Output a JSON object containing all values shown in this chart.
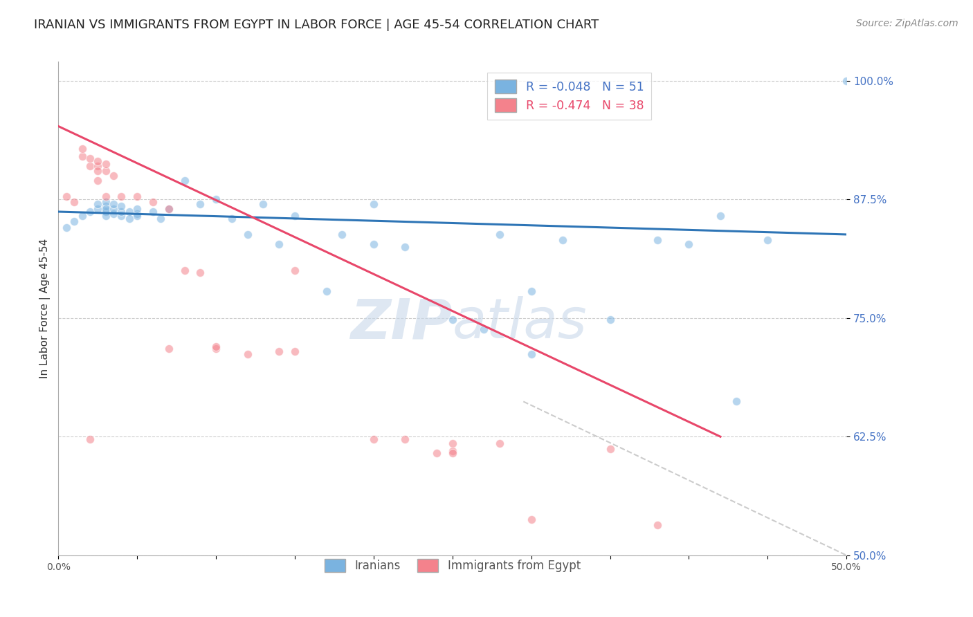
{
  "title": "IRANIAN VS IMMIGRANTS FROM EGYPT IN LABOR FORCE | AGE 45-54 CORRELATION CHART",
  "source": "Source: ZipAtlas.com",
  "ylabel": "In Labor Force | Age 45-54",
  "xlim": [
    0.0,
    0.5
  ],
  "ylim": [
    0.5,
    1.02
  ],
  "xticks": [
    0.0,
    0.05,
    0.1,
    0.15,
    0.2,
    0.25,
    0.3,
    0.35,
    0.4,
    0.45,
    0.5
  ],
  "yticks": [
    0.5,
    0.625,
    0.75,
    0.875,
    1.0
  ],
  "yticklabels": [
    "50.0%",
    "62.5%",
    "75.0%",
    "87.5%",
    "100.0%"
  ],
  "blue_scatter_x": [
    0.005,
    0.01,
    0.015,
    0.02,
    0.025,
    0.025,
    0.03,
    0.03,
    0.03,
    0.03,
    0.03,
    0.035,
    0.035,
    0.035,
    0.04,
    0.04,
    0.04,
    0.045,
    0.045,
    0.05,
    0.05,
    0.05,
    0.06,
    0.065,
    0.07,
    0.08,
    0.09,
    0.1,
    0.11,
    0.12,
    0.13,
    0.14,
    0.15,
    0.17,
    0.18,
    0.2,
    0.22,
    0.25,
    0.27,
    0.28,
    0.3,
    0.32,
    0.35,
    0.38,
    0.4,
    0.42,
    0.43,
    0.45,
    0.5,
    0.2,
    0.3
  ],
  "blue_scatter_y": [
    0.845,
    0.852,
    0.858,
    0.862,
    0.865,
    0.87,
    0.862,
    0.868,
    0.872,
    0.865,
    0.858,
    0.86,
    0.865,
    0.87,
    0.858,
    0.862,
    0.868,
    0.862,
    0.855,
    0.86,
    0.865,
    0.858,
    0.862,
    0.855,
    0.865,
    0.895,
    0.87,
    0.875,
    0.855,
    0.838,
    0.87,
    0.828,
    0.858,
    0.778,
    0.838,
    0.828,
    0.825,
    0.748,
    0.738,
    0.838,
    0.712,
    0.832,
    0.748,
    0.832,
    0.828,
    0.858,
    0.662,
    0.832,
    1.0,
    0.87,
    0.778
  ],
  "pink_scatter_x": [
    0.005,
    0.01,
    0.015,
    0.015,
    0.02,
    0.02,
    0.025,
    0.025,
    0.025,
    0.025,
    0.03,
    0.03,
    0.03,
    0.035,
    0.04,
    0.05,
    0.06,
    0.07,
    0.08,
    0.09,
    0.1,
    0.12,
    0.14,
    0.15,
    0.02,
    0.25,
    0.25,
    0.28,
    0.3,
    0.35,
    0.38,
    0.2,
    0.22,
    0.24,
    0.25,
    0.15,
    0.1,
    0.07
  ],
  "pink_scatter_y": [
    0.878,
    0.872,
    0.92,
    0.928,
    0.91,
    0.918,
    0.91,
    0.895,
    0.915,
    0.905,
    0.905,
    0.912,
    0.878,
    0.9,
    0.878,
    0.878,
    0.872,
    0.865,
    0.8,
    0.798,
    0.718,
    0.712,
    0.715,
    0.8,
    0.622,
    0.61,
    0.618,
    0.618,
    0.538,
    0.612,
    0.532,
    0.622,
    0.622,
    0.608,
    0.608,
    0.715,
    0.72,
    0.718
  ],
  "blue_line_x": [
    0.0,
    0.5
  ],
  "blue_line_y": [
    0.862,
    0.838
  ],
  "pink_line_x": [
    0.0,
    0.42
  ],
  "pink_line_y": [
    0.952,
    0.625
  ],
  "ref_line_x": [
    0.295,
    0.5
  ],
  "ref_line_y": [
    0.662,
    0.5
  ],
  "blue_color": "#7ab3e0",
  "pink_color": "#f4828c",
  "blue_line_color": "#2e75b6",
  "pink_line_color": "#e8476a",
  "ref_line_color": "#cccccc",
  "watermark_zip": "ZIP",
  "watermark_atlas": "atlas",
  "watermark_color": "#c8d8ea",
  "title_fontsize": 13,
  "axis_label_fontsize": 11,
  "tick_fontsize": 10,
  "source_fontsize": 10,
  "scatter_size": 75,
  "scatter_alpha": 0.55,
  "background_color": "#ffffff",
  "grid_color": "#cccccc"
}
